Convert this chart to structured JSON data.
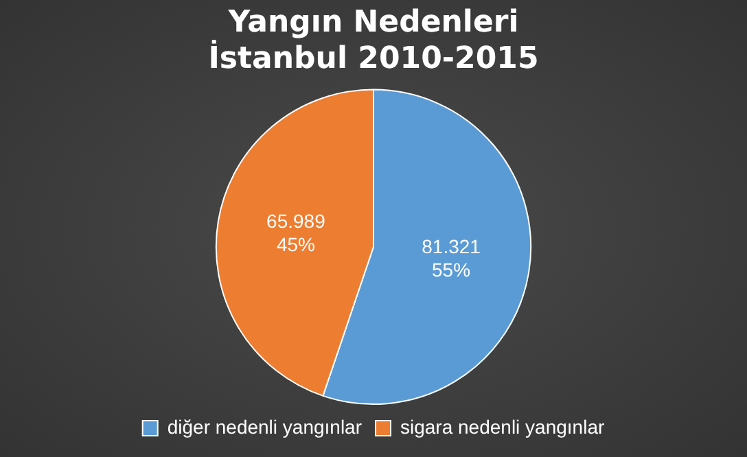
{
  "chart_data": {
    "type": "pie",
    "title": "Yangın Nedenleri\nİstanbul 2010-2015",
    "categories": [
      "diğer nedenli yangınlar",
      "sigara nedenli yangınlar"
    ],
    "values": [
      81321,
      65989
    ],
    "colors": [
      "#5b9bd5",
      "#ed7d31"
    ],
    "value_labels": [
      "81.321\n55%",
      "65.989\n45%"
    ],
    "legend": "bottom"
  }
}
